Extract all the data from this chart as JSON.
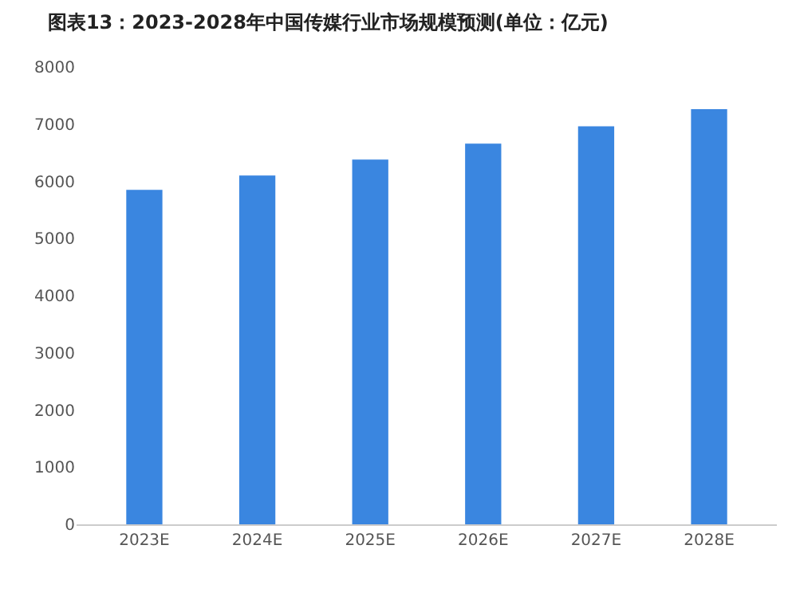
{
  "chart_data": {
    "type": "bar",
    "title": "图表13：2023-2028年中国传媒行业市场规模预测(单位：亿元)",
    "categories": [
      "2023E",
      "2024E",
      "2025E",
      "2026E",
      "2027E",
      "2028E"
    ],
    "values": [
      5850,
      6100,
      6380,
      6660,
      6960,
      7260
    ],
    "color": "#3a86e0",
    "ylim": [
      0,
      8000
    ],
    "yticks": [
      0,
      1000,
      2000,
      3000,
      4000,
      5000,
      6000,
      7000,
      8000
    ],
    "grid": false,
    "legend": false
  }
}
